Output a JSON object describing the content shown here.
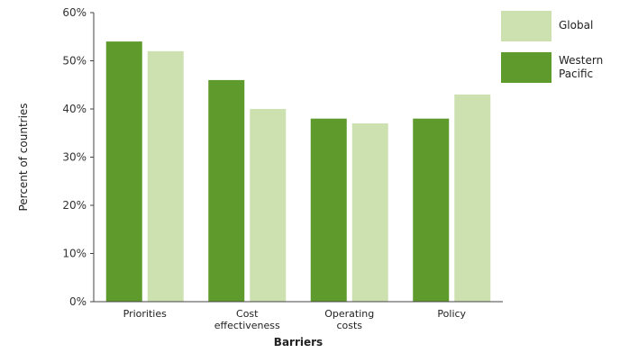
{
  "chart_data": {
    "type": "bar",
    "categories": [
      "Priorities",
      "Cost effectiveness",
      "Operating costs",
      "Policy"
    ],
    "category_lines": [
      [
        "Priorities"
      ],
      [
        "Cost",
        "effectiveness"
      ],
      [
        "Operating",
        "costs"
      ],
      [
        "Policy"
      ]
    ],
    "series": [
      {
        "name": "Western Pacific",
        "values": [
          54,
          46,
          38,
          38
        ],
        "color": "#5e9a2c"
      },
      {
        "name": "Global",
        "values": [
          52,
          40,
          37,
          43
        ],
        "color": "#cde0b0"
      }
    ],
    "legend_order": [
      "Global",
      "Western Pacific"
    ],
    "legend_lines": {
      "Global": [
        "Global"
      ],
      "Western Pacific": [
        "Western",
        "Pacific"
      ]
    },
    "xlabel": "Barriers",
    "ylabel": "Percent of countries",
    "ylim": [
      0,
      60
    ],
    "yticks": [
      0,
      10,
      20,
      30,
      40,
      50,
      60
    ],
    "ytick_labels": [
      "0%",
      "10%",
      "20%",
      "30%",
      "40%",
      "50%",
      "60%"
    ],
    "legend_position": "top-right",
    "grid": false
  }
}
